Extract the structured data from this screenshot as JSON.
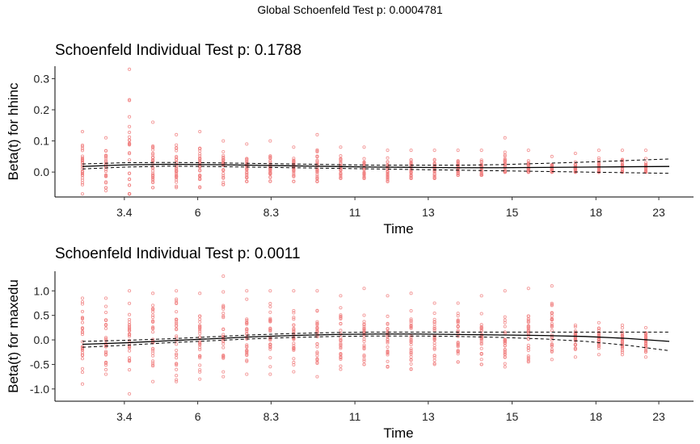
{
  "global_title": "Global Schoenfeld Test p: 0.0004781",
  "chart_data": [
    {
      "type": "scatter",
      "title": "Schoenfeld Individual Test p: 0.1788",
      "xlabel": "Time",
      "ylabel": "Beta(t) for hhinc",
      "x_ticks": [
        "3.4",
        "6",
        "8.3",
        "11",
        "13",
        "15",
        "18",
        "23"
      ],
      "y_ticks": [
        0.0,
        0.1,
        0.2,
        0.3
      ],
      "ylim": [
        -0.08,
        0.34
      ],
      "time_groups": 29,
      "series": [
        {
          "name": "residuals",
          "color": "#F08080",
          "columns": [
            {
              "group": 0,
              "min": -0.07,
              "max": 0.13
            },
            {
              "group": 1,
              "min": -0.06,
              "max": 0.11
            },
            {
              "group": 2,
              "min": -0.07,
              "max": 0.33
            },
            {
              "group": 3,
              "min": -0.05,
              "max": 0.16
            },
            {
              "group": 4,
              "min": -0.05,
              "max": 0.12
            },
            {
              "group": 5,
              "min": -0.05,
              "max": 0.13
            },
            {
              "group": 6,
              "min": -0.04,
              "max": 0.1
            },
            {
              "group": 7,
              "min": -0.03,
              "max": 0.09
            },
            {
              "group": 8,
              "min": -0.03,
              "max": 0.1
            },
            {
              "group": 9,
              "min": -0.03,
              "max": 0.08
            },
            {
              "group": 10,
              "min": -0.03,
              "max": 0.12
            },
            {
              "group": 11,
              "min": -0.02,
              "max": 0.08
            },
            {
              "group": 12,
              "min": -0.02,
              "max": 0.08
            },
            {
              "group": 13,
              "min": -0.03,
              "max": 0.07
            },
            {
              "group": 14,
              "min": -0.02,
              "max": 0.07
            },
            {
              "group": 15,
              "min": -0.02,
              "max": 0.07
            },
            {
              "group": 16,
              "min": -0.01,
              "max": 0.07
            },
            {
              "group": 17,
              "min": -0.01,
              "max": 0.07
            },
            {
              "group": 18,
              "min": 0.0,
              "max": 0.11
            },
            {
              "group": 19,
              "min": 0.0,
              "max": 0.07
            },
            {
              "group": 20,
              "min": 0.0,
              "max": 0.05
            },
            {
              "group": 21,
              "min": 0.0,
              "max": 0.06
            },
            {
              "group": 22,
              "min": 0.0,
              "max": 0.07
            },
            {
              "group": 23,
              "min": 0.0,
              "max": 0.07
            },
            {
              "group": 24,
              "min": 0.0,
              "max": 0.07
            }
          ]
        },
        {
          "name": "beta",
          "color": "#000000",
          "x": [
            0,
            2,
            4,
            6,
            8,
            10,
            12,
            14,
            16,
            18,
            20,
            22,
            24,
            26,
            28
          ],
          "y": [
            0.018,
            0.023,
            0.025,
            0.024,
            0.022,
            0.02,
            0.018,
            0.016,
            0.015,
            0.014,
            0.014,
            0.015,
            0.016,
            0.017,
            0.018
          ],
          "lower": [
            0.01,
            0.016,
            0.019,
            0.018,
            0.016,
            0.014,
            0.012,
            0.01,
            0.008,
            0.006,
            0.004,
            0.002,
            0.0,
            -0.002,
            -0.004
          ],
          "upper": [
            0.026,
            0.03,
            0.031,
            0.03,
            0.028,
            0.026,
            0.024,
            0.022,
            0.022,
            0.022,
            0.024,
            0.028,
            0.032,
            0.037,
            0.042
          ]
        }
      ]
    },
    {
      "type": "scatter",
      "title": "Schoenfeld Individual Test p: 0.0011",
      "xlabel": "Time",
      "ylabel": "Beta(t) for maxedu",
      "x_ticks": [
        "3.4",
        "6",
        "8.3",
        "11",
        "13",
        "15",
        "18",
        "23"
      ],
      "y_ticks": [
        -1.0,
        -0.5,
        0.0,
        0.5,
        1.0
      ],
      "ylim": [
        -1.25,
        1.4
      ],
      "time_groups": 29,
      "series": [
        {
          "name": "residuals",
          "color": "#F08080",
          "columns": [
            {
              "group": 0,
              "min": -0.9,
              "max": 0.85
            },
            {
              "group": 1,
              "min": -0.7,
              "max": 0.85
            },
            {
              "group": 2,
              "min": -1.1,
              "max": 1.0
            },
            {
              "group": 3,
              "min": -0.85,
              "max": 0.95
            },
            {
              "group": 4,
              "min": -0.85,
              "max": 1.0
            },
            {
              "group": 5,
              "min": -0.8,
              "max": 0.95
            },
            {
              "group": 6,
              "min": -0.75,
              "max": 1.3
            },
            {
              "group": 7,
              "min": -0.7,
              "max": 1.0
            },
            {
              "group": 8,
              "min": -0.7,
              "max": 1.0
            },
            {
              "group": 9,
              "min": -0.65,
              "max": 1.0
            },
            {
              "group": 10,
              "min": -0.75,
              "max": 1.0
            },
            {
              "group": 11,
              "min": -0.6,
              "max": 0.9
            },
            {
              "group": 12,
              "min": -0.5,
              "max": 1.05
            },
            {
              "group": 13,
              "min": -0.55,
              "max": 0.9
            },
            {
              "group": 14,
              "min": -0.6,
              "max": 0.95
            },
            {
              "group": 15,
              "min": -0.5,
              "max": 0.75
            },
            {
              "group": 16,
              "min": -0.45,
              "max": 0.75
            },
            {
              "group": 17,
              "min": -0.5,
              "max": 0.9
            },
            {
              "group": 18,
              "min": -0.55,
              "max": 1.0
            },
            {
              "group": 19,
              "min": -0.45,
              "max": 1.05
            },
            {
              "group": 20,
              "min": -0.4,
              "max": 1.1
            },
            {
              "group": 21,
              "min": -0.35,
              "max": 0.3
            },
            {
              "group": 22,
              "min": -0.3,
              "max": 0.35
            },
            {
              "group": 23,
              "min": -0.3,
              "max": 0.3
            },
            {
              "group": 24,
              "min": -0.35,
              "max": 0.25
            }
          ]
        },
        {
          "name": "beta",
          "color": "#000000",
          "x": [
            0,
            2,
            4,
            6,
            8,
            10,
            12,
            14,
            16,
            18,
            20,
            22,
            24,
            26,
            28
          ],
          "y": [
            -0.09,
            -0.06,
            -0.02,
            0.02,
            0.06,
            0.09,
            0.11,
            0.12,
            0.12,
            0.11,
            0.1,
            0.09,
            0.07,
            0.03,
            -0.03
          ],
          "lower": [
            -0.15,
            -0.11,
            -0.06,
            -0.02,
            0.02,
            0.05,
            0.07,
            0.08,
            0.08,
            0.07,
            0.05,
            0.02,
            -0.03,
            -0.11,
            -0.22
          ],
          "upper": [
            -0.03,
            -0.01,
            0.02,
            0.06,
            0.1,
            0.13,
            0.15,
            0.16,
            0.16,
            0.16,
            0.16,
            0.16,
            0.16,
            0.16,
            0.16
          ]
        }
      ]
    }
  ]
}
